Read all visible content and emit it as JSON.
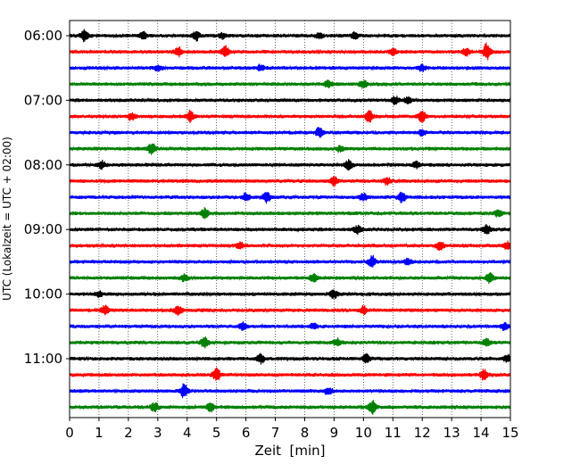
{
  "chart_data": {
    "type": "line",
    "title": "",
    "xlabel": "Zeit  [min]",
    "ylabel": "UTC (Lokalzeit = UTC + 02:00)",
    "xlim": [
      0,
      15
    ],
    "x_ticks": [
      "0",
      "1",
      "2",
      "3",
      "4",
      "5",
      "6",
      "7",
      "8",
      "9",
      "10",
      "11",
      "12",
      "13",
      "14",
      "15"
    ],
    "y_tick_labels": [
      "06:00",
      "07:00",
      "08:00",
      "09:00",
      "10:00",
      "11:00"
    ],
    "trace_interval_minutes": 15,
    "start_time": "06:00",
    "vertical_grid": "dotted",
    "colors_cycle": [
      "#000000",
      "#ff0000",
      "#0000ff",
      "#008000"
    ],
    "series": [
      {
        "start": "06:00",
        "color": "#000000",
        "events": [
          [
            0.5,
            6
          ],
          [
            2.5,
            4
          ],
          [
            4.3,
            5
          ],
          [
            5.2,
            3
          ],
          [
            8.5,
            3
          ],
          [
            9.7,
            4
          ]
        ]
      },
      {
        "start": "06:15",
        "color": "#ff0000",
        "events": [
          [
            3.7,
            5
          ],
          [
            5.3,
            6
          ],
          [
            11.0,
            3
          ],
          [
            14.2,
            9
          ],
          [
            13.5,
            4
          ]
        ]
      },
      {
        "start": "06:30",
        "color": "#0000ff",
        "events": [
          [
            3.0,
            3
          ],
          [
            6.5,
            3
          ],
          [
            12.0,
            3
          ]
        ]
      },
      {
        "start": "06:45",
        "color": "#008000",
        "events": [
          [
            8.8,
            4
          ],
          [
            10.0,
            4
          ]
        ]
      },
      {
        "start": "07:00",
        "color": "#000000",
        "events": [
          [
            11.1,
            4
          ],
          [
            11.5,
            3
          ]
        ]
      },
      {
        "start": "07:15",
        "color": "#ff0000",
        "events": [
          [
            2.1,
            4
          ],
          [
            4.1,
            6
          ],
          [
            10.2,
            6
          ],
          [
            12.0,
            7
          ]
        ]
      },
      {
        "start": "07:30",
        "color": "#0000ff",
        "events": [
          [
            8.5,
            5
          ],
          [
            12.0,
            3
          ]
        ]
      },
      {
        "start": "07:45",
        "color": "#008000",
        "events": [
          [
            2.8,
            6
          ],
          [
            9.2,
            3
          ]
        ]
      },
      {
        "start": "08:00",
        "color": "#000000",
        "events": [
          [
            1.1,
            4
          ],
          [
            9.5,
            5
          ],
          [
            11.8,
            3
          ]
        ]
      },
      {
        "start": "08:15",
        "color": "#ff0000",
        "events": [
          [
            9.0,
            5
          ],
          [
            10.8,
            4
          ]
        ]
      },
      {
        "start": "08:30",
        "color": "#0000ff",
        "events": [
          [
            6.0,
            4
          ],
          [
            6.7,
            6
          ],
          [
            10.0,
            4
          ],
          [
            11.3,
            6
          ]
        ]
      },
      {
        "start": "08:45",
        "color": "#008000",
        "events": [
          [
            4.6,
            5
          ],
          [
            14.6,
            4
          ]
        ]
      },
      {
        "start": "09:00",
        "color": "#000000",
        "events": [
          [
            9.8,
            4
          ],
          [
            14.2,
            5
          ]
        ]
      },
      {
        "start": "09:15",
        "color": "#ff0000",
        "events": [
          [
            5.8,
            3
          ],
          [
            12.6,
            5
          ],
          [
            14.9,
            4
          ]
        ]
      },
      {
        "start": "09:30",
        "color": "#0000ff",
        "events": [
          [
            10.3,
            6
          ],
          [
            11.5,
            3
          ]
        ]
      },
      {
        "start": "09:45",
        "color": "#008000",
        "events": [
          [
            3.9,
            3
          ],
          [
            8.3,
            4
          ],
          [
            14.3,
            5
          ]
        ]
      },
      {
        "start": "10:00",
        "color": "#000000",
        "events": [
          [
            1.0,
            3
          ],
          [
            9.0,
            5
          ]
        ]
      },
      {
        "start": "10:15",
        "color": "#ff0000",
        "events": [
          [
            1.2,
            5
          ],
          [
            3.7,
            5
          ],
          [
            10.0,
            4
          ]
        ]
      },
      {
        "start": "10:30",
        "color": "#0000ff",
        "events": [
          [
            5.9,
            4
          ],
          [
            8.3,
            3
          ],
          [
            14.8,
            4
          ]
        ]
      },
      {
        "start": "10:45",
        "color": "#008000",
        "events": [
          [
            4.6,
            6
          ],
          [
            9.1,
            4
          ],
          [
            14.2,
            4
          ]
        ]
      },
      {
        "start": "11:00",
        "color": "#000000",
        "events": [
          [
            6.5,
            5
          ],
          [
            10.1,
            5
          ],
          [
            14.9,
            4
          ]
        ]
      },
      {
        "start": "11:15",
        "color": "#ff0000",
        "events": [
          [
            5.0,
            7
          ],
          [
            14.1,
            6
          ]
        ]
      },
      {
        "start": "11:30",
        "color": "#0000ff",
        "events": [
          [
            3.9,
            8
          ],
          [
            8.8,
            4
          ]
        ]
      },
      {
        "start": "11:45",
        "color": "#008000",
        "events": [
          [
            2.9,
            5
          ],
          [
            4.8,
            5
          ],
          [
            10.3,
            7
          ]
        ]
      }
    ]
  }
}
